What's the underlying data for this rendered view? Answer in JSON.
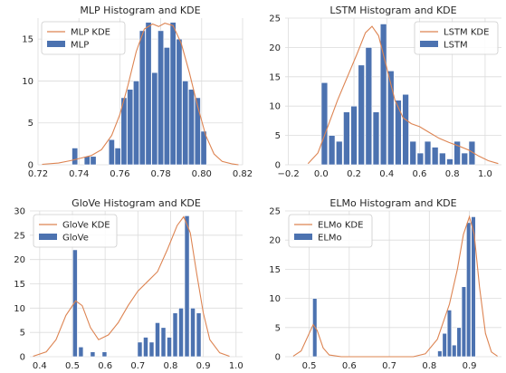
{
  "colors": {
    "bar": "#4c72b0",
    "kde": "#dd8452",
    "grid": "#dcdcdc",
    "axis": "#262626"
  },
  "chart_data": [
    {
      "type": "histogram+kde",
      "title": "MLP Histogram and KDE",
      "legend": [
        "MLP KDE",
        "MLP"
      ],
      "legend_position": "top-left",
      "xlim": [
        0.72,
        0.82
      ],
      "ylim": [
        0,
        17.5
      ],
      "xticks": [
        "0.72",
        "0.74",
        "0.76",
        "0.78",
        "0.80",
        "0.82"
      ],
      "xtick_values": [
        0.72,
        0.74,
        0.76,
        0.78,
        0.8,
        0.82
      ],
      "yticks": [
        "0",
        "5",
        "10",
        "15"
      ],
      "ytick_values": [
        0,
        5,
        10,
        15
      ],
      "bar_width": 0.0028,
      "bins": [
        {
          "x": 0.738,
          "y": 2
        },
        {
          "x": 0.741,
          "y": 0
        },
        {
          "x": 0.744,
          "y": 1
        },
        {
          "x": 0.747,
          "y": 1
        },
        {
          "x": 0.75,
          "y": 0
        },
        {
          "x": 0.753,
          "y": 0
        },
        {
          "x": 0.756,
          "y": 3
        },
        {
          "x": 0.759,
          "y": 2
        },
        {
          "x": 0.762,
          "y": 8
        },
        {
          "x": 0.765,
          "y": 9
        },
        {
          "x": 0.768,
          "y": 10
        },
        {
          "x": 0.771,
          "y": 16
        },
        {
          "x": 0.774,
          "y": 17
        },
        {
          "x": 0.777,
          "y": 11
        },
        {
          "x": 0.78,
          "y": 16
        },
        {
          "x": 0.783,
          "y": 14
        },
        {
          "x": 0.786,
          "y": 17
        },
        {
          "x": 0.789,
          "y": 15
        },
        {
          "x": 0.792,
          "y": 10
        },
        {
          "x": 0.795,
          "y": 9
        },
        {
          "x": 0.798,
          "y": 8
        },
        {
          "x": 0.801,
          "y": 4
        }
      ],
      "kde": [
        [
          0.722,
          0.05
        ],
        [
          0.73,
          0.2
        ],
        [
          0.736,
          0.5
        ],
        [
          0.741,
          0.8
        ],
        [
          0.746,
          1.1
        ],
        [
          0.751,
          1.8
        ],
        [
          0.756,
          3.5
        ],
        [
          0.76,
          6
        ],
        [
          0.764,
          9.5
        ],
        [
          0.768,
          13.5
        ],
        [
          0.772,
          16.2
        ],
        [
          0.776,
          16.8
        ],
        [
          0.779,
          16.5
        ],
        [
          0.782,
          16.9
        ],
        [
          0.786,
          16.6
        ],
        [
          0.79,
          14.5
        ],
        [
          0.794,
          11
        ],
        [
          0.798,
          7
        ],
        [
          0.802,
          3.5
        ],
        [
          0.806,
          1.3
        ],
        [
          0.81,
          0.4
        ],
        [
          0.815,
          0.1
        ],
        [
          0.818,
          0
        ]
      ]
    },
    {
      "type": "histogram+kde",
      "title": "LSTM Histogram and KDE",
      "legend": [
        "LSTM KDE",
        "LSTM"
      ],
      "legend_position": "top-right",
      "xlim": [
        -0.22,
        1.1
      ],
      "ylim": [
        0,
        25
      ],
      "xticks": [
        "−0.2",
        "0.0",
        "0.2",
        "0.4",
        "0.6",
        "0.8",
        "1.0"
      ],
      "xtick_values": [
        -0.2,
        0.0,
        0.2,
        0.4,
        0.6,
        0.8,
        1.0
      ],
      "yticks": [
        "0",
        "5",
        "10",
        "15",
        "20",
        "25"
      ],
      "ytick_values": [
        0,
        5,
        10,
        15,
        20,
        25
      ],
      "bar_width": 0.038,
      "bins": [
        {
          "x": 0.02,
          "y": 14
        },
        {
          "x": 0.065,
          "y": 5
        },
        {
          "x": 0.11,
          "y": 4
        },
        {
          "x": 0.155,
          "y": 9
        },
        {
          "x": 0.2,
          "y": 10
        },
        {
          "x": 0.245,
          "y": 17
        },
        {
          "x": 0.29,
          "y": 20
        },
        {
          "x": 0.335,
          "y": 9
        },
        {
          "x": 0.38,
          "y": 24
        },
        {
          "x": 0.425,
          "y": 16
        },
        {
          "x": 0.47,
          "y": 11
        },
        {
          "x": 0.515,
          "y": 12
        },
        {
          "x": 0.56,
          "y": 4
        },
        {
          "x": 0.605,
          "y": 2
        },
        {
          "x": 0.65,
          "y": 4
        },
        {
          "x": 0.695,
          "y": 3
        },
        {
          "x": 0.74,
          "y": 2
        },
        {
          "x": 0.785,
          "y": 1
        },
        {
          "x": 0.83,
          "y": 4
        },
        {
          "x": 0.875,
          "y": 2
        },
        {
          "x": 0.92,
          "y": 4
        }
      ],
      "kde": [
        [
          -0.08,
          0.2
        ],
        [
          -0.02,
          2
        ],
        [
          0.02,
          5
        ],
        [
          0.06,
          8
        ],
        [
          0.1,
          11
        ],
        [
          0.16,
          15
        ],
        [
          0.22,
          19
        ],
        [
          0.27,
          22.5
        ],
        [
          0.31,
          23.6
        ],
        [
          0.35,
          22
        ],
        [
          0.4,
          16.5
        ],
        [
          0.45,
          11
        ],
        [
          0.5,
          8
        ],
        [
          0.55,
          7
        ],
        [
          0.6,
          6.5
        ],
        [
          0.66,
          5.5
        ],
        [
          0.72,
          4.5
        ],
        [
          0.78,
          3.8
        ],
        [
          0.84,
          3.2
        ],
        [
          0.9,
          2.5
        ],
        [
          0.96,
          1.5
        ],
        [
          1.02,
          0.7
        ],
        [
          1.08,
          0.2
        ]
      ]
    },
    {
      "type": "histogram+kde",
      "title": "GloVe Histogram and KDE",
      "legend": [
        "GloVe KDE",
        "GloVe"
      ],
      "legend_position": "top-left",
      "xlim": [
        0.37,
        1.02
      ],
      "ylim": [
        0,
        30
      ],
      "xticks": [
        "0.4",
        "0.5",
        "0.6",
        "0.7",
        "0.8",
        "0.9",
        "1.0"
      ],
      "xtick_values": [
        0.4,
        0.5,
        0.6,
        0.7,
        0.8,
        0.9,
        1.0
      ],
      "yticks": [
        "0",
        "5",
        "10",
        "15",
        "20",
        "25",
        "30"
      ],
      "ytick_values": [
        0,
        5,
        10,
        15,
        20,
        25,
        30
      ],
      "bar_width": 0.014,
      "bins": [
        {
          "x": 0.508,
          "y": 22
        },
        {
          "x": 0.526,
          "y": 2
        },
        {
          "x": 0.562,
          "y": 1
        },
        {
          "x": 0.598,
          "y": 1
        },
        {
          "x": 0.706,
          "y": 3
        },
        {
          "x": 0.724,
          "y": 4
        },
        {
          "x": 0.742,
          "y": 3
        },
        {
          "x": 0.76,
          "y": 7
        },
        {
          "x": 0.778,
          "y": 6
        },
        {
          "x": 0.796,
          "y": 4
        },
        {
          "x": 0.814,
          "y": 9
        },
        {
          "x": 0.832,
          "y": 10
        },
        {
          "x": 0.85,
          "y": 29
        },
        {
          "x": 0.868,
          "y": 10
        },
        {
          "x": 0.886,
          "y": 9
        }
      ],
      "kde": [
        [
          0.38,
          0.1
        ],
        [
          0.42,
          1
        ],
        [
          0.45,
          3.5
        ],
        [
          0.48,
          8.5
        ],
        [
          0.51,
          11.5
        ],
        [
          0.53,
          10.5
        ],
        [
          0.555,
          6
        ],
        [
          0.58,
          3.5
        ],
        [
          0.61,
          4.5
        ],
        [
          0.64,
          7
        ],
        [
          0.67,
          10.5
        ],
        [
          0.7,
          13.5
        ],
        [
          0.73,
          15.5
        ],
        [
          0.76,
          17.5
        ],
        [
          0.79,
          22
        ],
        [
          0.82,
          27
        ],
        [
          0.84,
          28.8
        ],
        [
          0.86,
          25.5
        ],
        [
          0.88,
          17
        ],
        [
          0.9,
          9
        ],
        [
          0.92,
          3.5
        ],
        [
          0.95,
          0.8
        ],
        [
          0.98,
          0.1
        ]
      ]
    },
    {
      "type": "histogram+kde",
      "title": "ELMo Histogram and KDE",
      "legend": [
        "ELMo KDE",
        "ELMo"
      ],
      "legend_position": "top-left",
      "xlim": [
        0.44,
        0.98
      ],
      "ylim": [
        0,
        25
      ],
      "xticks": [
        "0.5",
        "0.6",
        "0.7",
        "0.8",
        "0.9"
      ],
      "xtick_values": [
        0.5,
        0.6,
        0.7,
        0.8,
        0.9
      ],
      "yticks": [
        "0",
        "5",
        "10",
        "15",
        "20",
        "25"
      ],
      "ytick_values": [
        0,
        5,
        10,
        15,
        20,
        25
      ],
      "bar_width": 0.0105,
      "bins": [
        {
          "x": 0.514,
          "y": 10
        },
        {
          "x": 0.826,
          "y": 1
        },
        {
          "x": 0.838,
          "y": 4
        },
        {
          "x": 0.85,
          "y": 8
        },
        {
          "x": 0.862,
          "y": 2
        },
        {
          "x": 0.874,
          "y": 5
        },
        {
          "x": 0.886,
          "y": 12
        },
        {
          "x": 0.898,
          "y": 23
        },
        {
          "x": 0.91,
          "y": 24
        }
      ],
      "kde": [
        [
          0.46,
          0.1
        ],
        [
          0.48,
          1
        ],
        [
          0.5,
          4
        ],
        [
          0.51,
          5.5
        ],
        [
          0.52,
          4.5
        ],
        [
          0.535,
          1.5
        ],
        [
          0.55,
          0.3
        ],
        [
          0.58,
          0
        ],
        [
          0.76,
          0
        ],
        [
          0.79,
          0.5
        ],
        [
          0.82,
          3
        ],
        [
          0.85,
          9
        ],
        [
          0.87,
          15
        ],
        [
          0.885,
          21
        ],
        [
          0.9,
          24
        ],
        [
          0.912,
          21
        ],
        [
          0.925,
          12
        ],
        [
          0.94,
          4
        ],
        [
          0.955,
          0.8
        ],
        [
          0.97,
          0.1
        ]
      ]
    }
  ]
}
